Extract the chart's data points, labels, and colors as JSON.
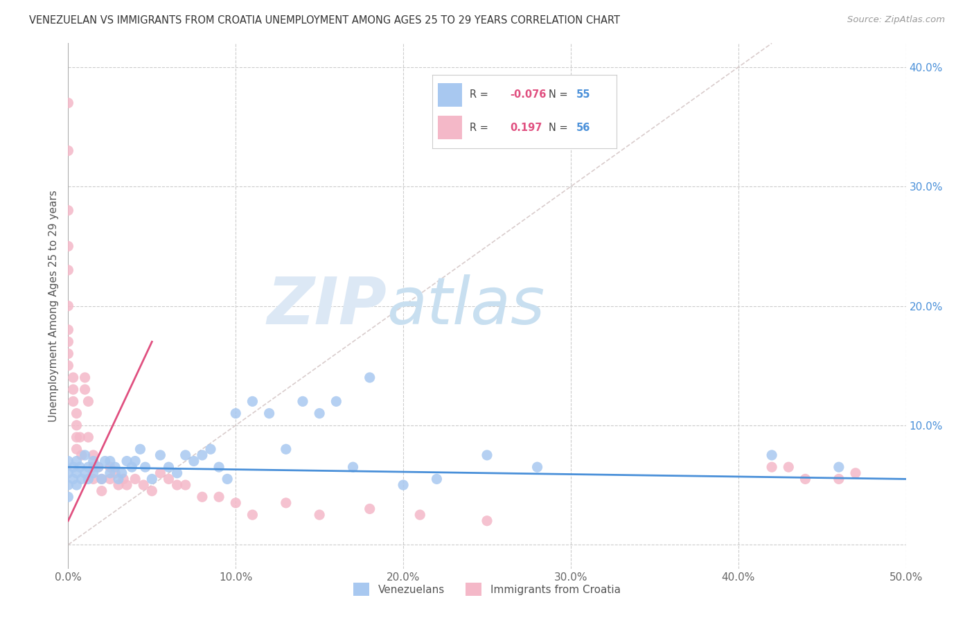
{
  "title": "VENEZUELAN VS IMMIGRANTS FROM CROATIA UNEMPLOYMENT AMONG AGES 25 TO 29 YEARS CORRELATION CHART",
  "source": "Source: ZipAtlas.com",
  "ylabel": "Unemployment Among Ages 25 to 29 years",
  "xlim": [
    0.0,
    0.5
  ],
  "ylim": [
    -0.02,
    0.42
  ],
  "xticks": [
    0.0,
    0.1,
    0.2,
    0.3,
    0.4,
    0.5
  ],
  "xticklabels": [
    "0.0%",
    "10.0%",
    "20.0%",
    "30.0%",
    "40.0%",
    "50.0%"
  ],
  "yticks_right": [
    0.0,
    0.1,
    0.2,
    0.3,
    0.4
  ],
  "yticklabels_right": [
    "",
    "10.0%",
    "20.0%",
    "30.0%",
    "40.0%"
  ],
  "background_color": "#ffffff",
  "grid_color": "#cccccc",
  "venezuelan_color": "#a8c8f0",
  "venezuela_line_color": "#4a90d9",
  "croatia_color": "#f4b8c8",
  "croatia_line_color": "#e05080",
  "diagonal_color": "#d0c0c0",
  "legend_r_venezuelan": "-0.076",
  "legend_n_venezuelan": "55",
  "legend_r_croatia": "0.197",
  "legend_n_croatia": "56",
  "watermark_zip": "ZIP",
  "watermark_atlas": "atlas",
  "venezuelan_points_x": [
    0.0,
    0.0,
    0.0,
    0.0,
    0.003,
    0.003,
    0.005,
    0.005,
    0.005,
    0.007,
    0.008,
    0.01,
    0.01,
    0.012,
    0.012,
    0.015,
    0.015,
    0.018,
    0.02,
    0.022,
    0.025,
    0.025,
    0.028,
    0.03,
    0.032,
    0.035,
    0.038,
    0.04,
    0.043,
    0.046,
    0.05,
    0.055,
    0.06,
    0.065,
    0.07,
    0.075,
    0.08,
    0.085,
    0.09,
    0.095,
    0.1,
    0.11,
    0.12,
    0.13,
    0.14,
    0.15,
    0.16,
    0.17,
    0.18,
    0.2,
    0.22,
    0.25,
    0.28,
    0.42,
    0.46
  ],
  "venezuelan_points_y": [
    0.06,
    0.07,
    0.05,
    0.04,
    0.055,
    0.065,
    0.06,
    0.07,
    0.05,
    0.065,
    0.055,
    0.06,
    0.075,
    0.065,
    0.055,
    0.07,
    0.06,
    0.065,
    0.055,
    0.07,
    0.06,
    0.07,
    0.065,
    0.055,
    0.06,
    0.07,
    0.065,
    0.07,
    0.08,
    0.065,
    0.055,
    0.075,
    0.065,
    0.06,
    0.075,
    0.07,
    0.075,
    0.08,
    0.065,
    0.055,
    0.11,
    0.12,
    0.11,
    0.08,
    0.12,
    0.11,
    0.12,
    0.065,
    0.14,
    0.05,
    0.055,
    0.075,
    0.065,
    0.075,
    0.065
  ],
  "croatia_points_x": [
    0.0,
    0.0,
    0.0,
    0.0,
    0.0,
    0.0,
    0.0,
    0.0,
    0.0,
    0.0,
    0.003,
    0.003,
    0.003,
    0.005,
    0.005,
    0.005,
    0.005,
    0.007,
    0.008,
    0.01,
    0.01,
    0.012,
    0.012,
    0.015,
    0.015,
    0.015,
    0.018,
    0.02,
    0.02,
    0.025,
    0.025,
    0.028,
    0.03,
    0.033,
    0.035,
    0.04,
    0.045,
    0.05,
    0.055,
    0.06,
    0.065,
    0.07,
    0.08,
    0.09,
    0.1,
    0.11,
    0.13,
    0.15,
    0.18,
    0.21,
    0.25,
    0.42,
    0.43,
    0.44,
    0.46,
    0.47
  ],
  "croatia_points_y": [
    0.37,
    0.33,
    0.28,
    0.25,
    0.23,
    0.2,
    0.18,
    0.17,
    0.16,
    0.15,
    0.14,
    0.13,
    0.12,
    0.11,
    0.1,
    0.09,
    0.08,
    0.09,
    0.075,
    0.14,
    0.13,
    0.12,
    0.09,
    0.075,
    0.065,
    0.055,
    0.065,
    0.055,
    0.045,
    0.065,
    0.055,
    0.06,
    0.05,
    0.055,
    0.05,
    0.055,
    0.05,
    0.045,
    0.06,
    0.055,
    0.05,
    0.05,
    0.04,
    0.04,
    0.035,
    0.025,
    0.035,
    0.025,
    0.03,
    0.025,
    0.02,
    0.065,
    0.065,
    0.055,
    0.055,
    0.06
  ],
  "ven_line_x0": 0.0,
  "ven_line_x1": 0.5,
  "ven_line_y0": 0.065,
  "ven_line_y1": 0.055,
  "cro_line_x0": 0.0,
  "cro_line_x1": 0.05,
  "cro_line_y0": 0.02,
  "cro_line_y1": 0.17
}
